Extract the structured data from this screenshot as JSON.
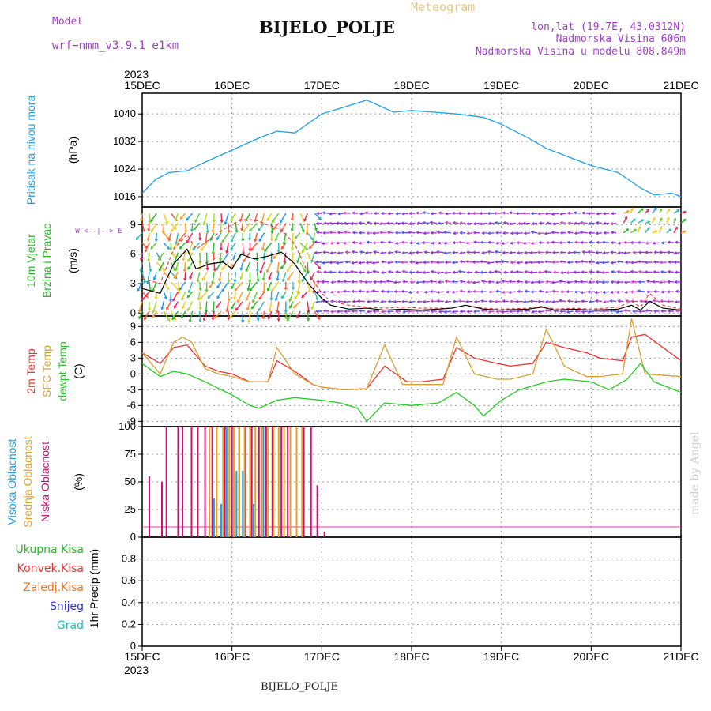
{
  "header": {
    "model_label": "Model",
    "model_name": "wrf−nmm_v3.9.1 e1km",
    "title": "BIJELO_POLJE",
    "meteogram_label": "Meteogram",
    "lonlat": "lon,lat (19.7E, 43.0312N)",
    "elevation": "Nadmorska Visina 606m",
    "model_elevation": "Nadmorska Visina u modelu 808.849m",
    "footer_station": "BIJELO_POLJE",
    "signature": "made by Angel"
  },
  "time_axis": {
    "year": "2023",
    "labels": [
      "15DEC",
      "16DEC",
      "17DEC",
      "18DEC",
      "19DEC",
      "20DEC",
      "21DEC"
    ]
  },
  "colors": {
    "pressure": "#1ea0e6",
    "t2m": "#ee3333",
    "sfc_temp": "#d8a030",
    "dewpt": "#22cc22",
    "low_cloud": "#cc1177",
    "mid_cloud": "#e8a020",
    "high_cloud": "#1ea0e6",
    "wind_speed_line": "#000000",
    "gust": "#ee3333",
    "purple_text": "#a040c8"
  },
  "chart_data": [
    {
      "type": "line",
      "panel": "pressure",
      "ylabel_colored": "Pritisak na nivou mora",
      "ylabel_unit": "(hPa)",
      "ylim": [
        1013,
        1046
      ],
      "yticks": [
        "1016",
        "1024",
        "1032",
        "1040"
      ],
      "x_days": [
        0,
        0.15,
        0.3,
        0.5,
        0.7,
        1.0,
        1.3,
        1.5,
        1.7,
        2.0,
        2.25,
        2.5,
        2.8,
        3.0,
        3.25,
        3.5,
        3.8,
        4.0,
        4.3,
        4.5,
        4.8,
        5.0,
        5.3,
        5.55,
        5.7,
        5.9,
        6.0
      ],
      "series": [
        {
          "values": [
            1017,
            1021,
            1023,
            1023.5,
            1026,
            1029.5,
            1033,
            1035,
            1034.5,
            1040,
            1042,
            1044,
            1040.5,
            1041,
            1040.5,
            1040,
            1039,
            1037,
            1033,
            1030,
            1027,
            1025,
            1023,
            1018.5,
            1016.5,
            1017,
            1016
          ]
        }
      ]
    },
    {
      "type": "line",
      "panel": "wind",
      "ylabel_colored": [
        "10m Vjetar",
        "Brzina i Pravac"
      ],
      "ylabel_unit": "(m/s)",
      "compass_legend": "W <--|--> E",
      "ylim": [
        -0.3,
        10.8
      ],
      "yticks": [
        "0",
        "3",
        "6",
        "9"
      ],
      "x_days": [
        0,
        0.2,
        0.35,
        0.5,
        0.6,
        0.75,
        0.9,
        1.0,
        1.1,
        1.25,
        1.4,
        1.55,
        1.7,
        1.85,
        2.0,
        2.1,
        2.3,
        2.5,
        2.7,
        2.9,
        3.1,
        3.3,
        3.45,
        3.6,
        3.8,
        4.0,
        4.3,
        4.45,
        4.6,
        4.8,
        5.0,
        5.3,
        5.45,
        5.55,
        5.65,
        5.8,
        6.0
      ],
      "series": [
        {
          "name": "speed",
          "values": [
            2.5,
            2.0,
            5.0,
            6.5,
            4.5,
            5.0,
            5.2,
            4.5,
            6.0,
            5.5,
            5.8,
            6.2,
            5.0,
            3.0,
            1.5,
            0.8,
            0.4,
            0.5,
            0.3,
            0.4,
            0.3,
            0.4,
            0.5,
            0.8,
            0.4,
            0.3,
            0.4,
            0.6,
            0.3,
            0.4,
            0.3,
            0.4,
            0.8,
            0.3,
            1.2,
            0.5,
            0.3
          ]
        },
        {
          "name": "gust",
          "values": [
            3.5,
            3.0,
            6.5,
            8.0,
            6.5,
            7.5,
            8.5,
            9.0,
            9.5,
            9.5,
            9.0,
            8.5,
            7.0,
            4.0,
            2.0,
            1.2,
            0.8,
            0.6,
            0.5,
            0.6,
            0.5,
            0.5,
            0.5,
            0.8,
            0.5,
            0.4,
            0.5,
            0.7,
            0.4,
            0.5,
            0.4,
            0.6,
            1.2,
            0.6,
            2.0,
            0.8,
            0.4
          ]
        }
      ]
    },
    {
      "type": "line",
      "panel": "temperature",
      "ylabel_colored": [
        "2m Temp",
        "SFC Temp",
        "dewpt Temp"
      ],
      "ylabel_unit": "(C)",
      "ylim": [
        -10,
        11
      ],
      "yticks": [
        "-9",
        "-6",
        "-3",
        "0",
        "3",
        "6",
        "9"
      ],
      "series": [
        {
          "name": "2m Temp",
          "x_days": [
            0,
            0.2,
            0.35,
            0.5,
            0.7,
            0.85,
            1.0,
            1.2,
            1.4,
            1.5,
            1.7,
            1.9,
            2.0,
            2.25,
            2.5,
            2.7,
            2.95,
            3.1,
            3.35,
            3.5,
            3.7,
            3.95,
            4.1,
            4.35,
            4.5,
            4.7,
            4.95,
            5.1,
            5.35,
            5.45,
            5.6,
            6.0
          ],
          "values": [
            4,
            2,
            5,
            5.5,
            1.5,
            0.5,
            0,
            -1.5,
            -1.5,
            2.5,
            0.5,
            -2,
            -2.5,
            -3,
            -2.8,
            1.5,
            -1.5,
            -1.5,
            -1,
            5,
            3,
            2,
            1.5,
            2,
            6,
            5,
            4,
            3,
            2.5,
            7,
            7.5,
            2.5
          ]
        },
        {
          "name": "SFC Temp",
          "x_days": [
            0,
            0.2,
            0.35,
            0.45,
            0.55,
            0.7,
            0.85,
            1.0,
            1.2,
            1.4,
            1.5,
            1.7,
            1.9,
            2.0,
            2.25,
            2.5,
            2.7,
            2.9,
            3.1,
            3.35,
            3.5,
            3.7,
            3.95,
            4.1,
            4.35,
            4.5,
            4.7,
            4.95,
            5.1,
            5.35,
            5.45,
            5.6,
            6.0
          ],
          "values": [
            4,
            0,
            6,
            7,
            6,
            1,
            0,
            -0.5,
            -1.5,
            -1.5,
            5,
            0,
            -2,
            -2.5,
            -3,
            -2.8,
            5.5,
            -2,
            -2,
            -2,
            7,
            0,
            -1,
            -1,
            0,
            8.5,
            1.5,
            -0.5,
            -0.5,
            0,
            10.5,
            0,
            -0.5
          ]
        },
        {
          "name": "dewpt Temp",
          "x_days": [
            0,
            0.2,
            0.35,
            0.5,
            0.7,
            1.0,
            1.2,
            1.3,
            1.5,
            1.7,
            2.0,
            2.2,
            2.4,
            2.5,
            2.7,
            3.0,
            3.3,
            3.5,
            3.7,
            3.8,
            4.0,
            4.2,
            4.5,
            4.7,
            5.0,
            5.2,
            5.4,
            5.55,
            5.7,
            6.0
          ],
          "values": [
            2,
            -0.5,
            0.5,
            0,
            -1.5,
            -4,
            -6,
            -6.5,
            -5,
            -4.5,
            -5,
            -5.5,
            -6.5,
            -9,
            -5.5,
            -6,
            -5.5,
            -3.5,
            -6,
            -8,
            -5,
            -3,
            -1.5,
            -1,
            -1.5,
            -3,
            -1,
            2,
            -1.5,
            -3.5
          ]
        }
      ]
    },
    {
      "type": "bar",
      "panel": "cloud",
      "ylabel_colored": [
        "Visoka Oblacnost",
        "Srednja Oblacnost",
        "Niska Oblacnost"
      ],
      "ylabel_unit": "(%)",
      "ylim": [
        0,
        100
      ],
      "yticks": [
        "0",
        "25",
        "50",
        "75",
        "100"
      ],
      "series": [
        {
          "name": "Niska Oblacnost",
          "x_days": [
            0.08,
            0.22,
            0.27,
            0.4,
            0.45,
            0.55,
            0.62,
            0.7,
            0.78,
            0.92,
            1.0,
            1.08,
            1.15,
            1.22,
            1.3,
            1.38,
            1.45,
            1.55,
            1.62,
            1.72,
            1.8,
            1.88,
            1.95,
            2.03
          ],
          "values": [
            55,
            50,
            100,
            100,
            100,
            100,
            100,
            100,
            100,
            100,
            100,
            100,
            100,
            100,
            100,
            100,
            100,
            100,
            100,
            100,
            100,
            100,
            47,
            5
          ]
        },
        {
          "name": "Srednja Oblacnost",
          "x_days": [
            0.75,
            0.83,
            0.9,
            0.97,
            1.02,
            1.08,
            1.14,
            1.2,
            1.26,
            1.33,
            1.4,
            1.46,
            1.52,
            1.58,
            1.65,
            1.72,
            1.78
          ],
          "values": [
            100,
            100,
            100,
            100,
            100,
            100,
            100,
            100,
            100,
            100,
            100,
            100,
            100,
            100,
            100,
            100,
            100
          ]
        },
        {
          "name": "Visoka Oblacnost",
          "x_days": [
            0.8,
            0.88,
            0.94,
            1.05,
            1.12,
            1.24,
            1.35
          ],
          "values": [
            35,
            30,
            100,
            60,
            60,
            30,
            100
          ]
        }
      ]
    },
    {
      "type": "bar",
      "panel": "precip",
      "ylabel_unit": "1hr Precip (mm)",
      "legend": [
        "Ukupna Kisa",
        "Konvek.Kisa",
        "Zaledj.Kisa",
        "Snijeg",
        "Grad"
      ],
      "ylim": [
        0,
        1.0
      ],
      "yticks": [
        "0",
        "0.2",
        "0.4",
        "0.6",
        "0.8"
      ],
      "series": []
    }
  ]
}
